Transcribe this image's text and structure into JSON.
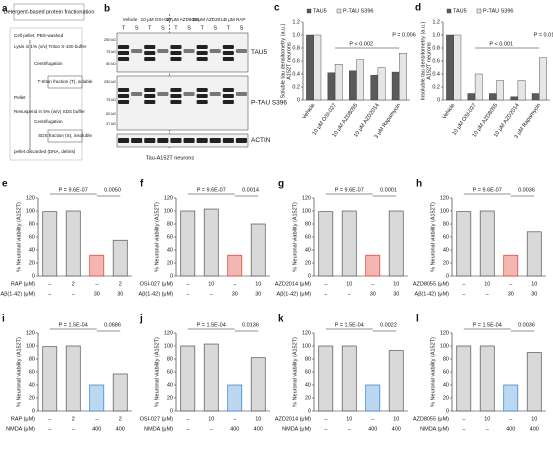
{
  "diagram": {
    "label": "a",
    "title": "Detergent-based protein fractionation",
    "steps": [
      "Cell pellet, PBS-washed",
      "Lysis in 1% (v/v) Triton X-100 buffer",
      "Centrifugation",
      "T-triton fraction (T), soluble",
      "Pellet",
      "Resuspend in 5% (w/v) SDS buffer",
      "Centrifugation",
      "SDS fraction (S), insoluble",
      "pellet discarded (DNA, debris)"
    ]
  },
  "blot": {
    "label": "b",
    "lanes": [
      "Vehicle",
      "10 μM OSI-027",
      "10 μM AZD8055",
      "10 μM AZD2014",
      "3 μM RAP"
    ],
    "fractions": [
      "T",
      "S"
    ],
    "markers": [
      "250 kD",
      "75 kD",
      "50 kD",
      "250 kD",
      "75 kD",
      "50 kD",
      "37 kD"
    ],
    "proteins": [
      "TAU5",
      "P-TAU S396",
      "ACTIN"
    ],
    "footer": "Tau-A152T neurons"
  },
  "chart_data": [
    {
      "type": "bar",
      "label": "c",
      "ylabel": "Soluble tau densitometry (a.u.)",
      "ylabel2": "A152T neurons",
      "categories": [
        "Vehicle",
        "10 μM OSI-027",
        "10 μM AZD8055",
        "10 μM AZD2014",
        "3 μM Rapamycin"
      ],
      "series": [
        {
          "name": "TAU5",
          "color": "#5a5a5a",
          "values": [
            1.0,
            0.42,
            0.45,
            0.38,
            0.43
          ]
        },
        {
          "name": "P-TAU S396",
          "color": "#e6e6e6",
          "values": [
            1.0,
            0.55,
            0.62,
            0.5,
            0.72
          ]
        }
      ],
      "ylim": [
        0,
        1.2
      ],
      "yticks": [
        0,
        0.2,
        0.4,
        0.6,
        0.8,
        {
          "value": 1,
          "label": "1.0"
        },
        1.2
      ],
      "annotations": [
        "P < 0.002",
        "P = 0.006"
      ]
    },
    {
      "type": "bar",
      "label": "d",
      "ylabel": "Insoluble tau densitometry (a.u.)",
      "ylabel2": "A152T neurons",
      "categories": [
        "Vehicle",
        "10 μM OSI-027",
        "10 μM AZD8055",
        "10 μM AZD2014",
        "3 μM Rapamycin"
      ],
      "series": [
        {
          "name": "TAU5",
          "color": "#5a5a5a",
          "values": [
            1.0,
            0.1,
            0.1,
            0.05,
            0.1
          ]
        },
        {
          "name": "P-TAU S396",
          "color": "#e6e6e6",
          "values": [
            1.0,
            0.4,
            0.3,
            0.3,
            0.65
          ]
        }
      ],
      "ylim": [
        0,
        1.2
      ],
      "yticks": [
        0,
        0.2,
        0.4,
        0.6,
        0.8,
        {
          "value": 1,
          "label": "1.0"
        },
        1.2
      ],
      "annotations": [
        "P < 0.001",
        "P = 0.01"
      ]
    },
    {
      "type": "bar",
      "label": "e",
      "ylabel": "% Neuronal viability (A152T)",
      "values": [
        99,
        100,
        32,
        55
      ],
      "colors": [
        "#d9d9d9",
        "#d9d9d9",
        "#f4b6b0",
        "#d9d9d9"
      ],
      "edge_colors": [
        "#555555",
        "#555555",
        "#e03c31",
        "#555555"
      ],
      "conditions": [
        {
          "name": "RAP (μM)",
          "values": [
            "–",
            "2",
            "–",
            "2"
          ]
        },
        {
          "name": "Aβ(1-42) (μM)",
          "values": [
            "–",
            "–",
            "30",
            "30"
          ]
        }
      ],
      "ylim": [
        0,
        120
      ],
      "yticks": [
        0,
        20,
        40,
        60,
        80,
        100,
        120
      ],
      "annotations": [
        "P = 9.6E-07",
        "0.0050"
      ]
    },
    {
      "type": "bar",
      "label": "f",
      "ylabel": "% Neuronal viability (A152T)",
      "values": [
        100,
        103,
        32,
        80
      ],
      "colors": [
        "#d9d9d9",
        "#d9d9d9",
        "#f4b6b0",
        "#d9d9d9"
      ],
      "edge_colors": [
        "#555555",
        "#555555",
        "#e03c31",
        "#555555"
      ],
      "conditions": [
        {
          "name": "OSI-027 (μM)",
          "values": [
            "–",
            "10",
            "–",
            "10"
          ]
        },
        {
          "name": "Aβ(1-42) (μM)",
          "values": [
            "–",
            "–",
            "30",
            "30"
          ]
        }
      ],
      "ylim": [
        0,
        120
      ],
      "yticks": [
        0,
        20,
        40,
        60,
        80,
        100,
        120
      ],
      "annotations": [
        "P = 9.6E-07",
        "0.0014"
      ]
    },
    {
      "type": "bar",
      "label": "g",
      "ylabel": "% Neuronal viability (A152T)",
      "values": [
        99,
        100,
        32,
        100
      ],
      "colors": [
        "#d9d9d9",
        "#d9d9d9",
        "#f4b6b0",
        "#d9d9d9"
      ],
      "edge_colors": [
        "#555555",
        "#555555",
        "#e03c31",
        "#555555"
      ],
      "conditions": [
        {
          "name": "AZD2014 (μM)",
          "values": [
            "–",
            "10",
            "–",
            "10"
          ]
        },
        {
          "name": "Aβ(1-42) (μM)",
          "values": [
            "–",
            "–",
            "30",
            "30"
          ]
        }
      ],
      "ylim": [
        0,
        120
      ],
      "yticks": [
        0,
        20,
        40,
        60,
        80,
        100,
        120
      ],
      "annotations": [
        "P = 9.6E-07",
        "0.0001"
      ]
    },
    {
      "type": "bar",
      "label": "h",
      "ylabel": "% Neuronal viability (A152T)",
      "values": [
        99,
        100,
        32,
        68
      ],
      "colors": [
        "#d9d9d9",
        "#d9d9d9",
        "#f4b6b0",
        "#d9d9d9"
      ],
      "edge_colors": [
        "#555555",
        "#555555",
        "#e03c31",
        "#555555"
      ],
      "conditions": [
        {
          "name": "AZD8055 (μM)",
          "values": [
            "–",
            "10",
            "–",
            "10"
          ]
        },
        {
          "name": "Aβ(1-42) (μM)",
          "values": [
            "–",
            "–",
            "30",
            "30"
          ]
        }
      ],
      "ylim": [
        0,
        120
      ],
      "yticks": [
        0,
        20,
        40,
        60,
        80,
        100,
        120
      ],
      "annotations": [
        "P = 9.6E-07",
        "0.0036"
      ]
    },
    {
      "type": "bar",
      "label": "i",
      "ylabel": "% Neuronal viability (A152T)",
      "values": [
        99,
        100,
        40,
        57
      ],
      "colors": [
        "#d9d9d9",
        "#d9d9d9",
        "#bcd7f0",
        "#d9d9d9"
      ],
      "edge_colors": [
        "#555555",
        "#555555",
        "#2a7fd0",
        "#555555"
      ],
      "conditions": [
        {
          "name": "RAP (μM)",
          "values": [
            "–",
            "2",
            "–",
            "2"
          ]
        },
        {
          "name": "NMDA (μM)",
          "values": [
            "–",
            "–",
            "400",
            "400"
          ]
        }
      ],
      "ylim": [
        0,
        120
      ],
      "yticks": [
        0,
        20,
        40,
        60,
        80,
        100,
        120
      ],
      "annotations": [
        "P = 1.5E-04",
        "0.0686"
      ]
    },
    {
      "type": "bar",
      "label": "j",
      "ylabel": "% Neuronal viability (A152T)",
      "values": [
        100,
        103,
        40,
        82
      ],
      "colors": [
        "#d9d9d9",
        "#d9d9d9",
        "#bcd7f0",
        "#d9d9d9"
      ],
      "edge_colors": [
        "#555555",
        "#555555",
        "#2a7fd0",
        "#555555"
      ],
      "conditions": [
        {
          "name": "OSI-027 (μM)",
          "values": [
            "–",
            "10",
            "–",
            "10"
          ]
        },
        {
          "name": "NMDA (μM)",
          "values": [
            "–",
            "–",
            "400",
            "400"
          ]
        }
      ],
      "ylim": [
        0,
        120
      ],
      "yticks": [
        0,
        20,
        40,
        60,
        80,
        100,
        120
      ],
      "annotations": [
        "P = 1.5E-04",
        "0.0136"
      ]
    },
    {
      "type": "bar",
      "label": "k",
      "ylabel": "% Neuronal viability (A152T)",
      "values": [
        100,
        100,
        40,
        93
      ],
      "colors": [
        "#d9d9d9",
        "#d9d9d9",
        "#bcd7f0",
        "#d9d9d9"
      ],
      "edge_colors": [
        "#555555",
        "#555555",
        "#2a7fd0",
        "#555555"
      ],
      "conditions": [
        {
          "name": "AZD2014 (μM)",
          "values": [
            "–",
            "10",
            "–",
            "10"
          ]
        },
        {
          "name": "NMDA (μM)",
          "values": [
            "–",
            "–",
            "400",
            "400"
          ]
        }
      ],
      "ylim": [
        0,
        120
      ],
      "yticks": [
        0,
        20,
        40,
        60,
        80,
        100,
        120
      ],
      "annotations": [
        "P = 1.5E-04",
        "0.0022"
      ]
    },
    {
      "type": "bar",
      "label": "l",
      "ylabel": "% Neuronal viability (A152T)",
      "values": [
        100,
        100,
        40,
        90
      ],
      "colors": [
        "#d9d9d9",
        "#d9d9d9",
        "#bcd7f0",
        "#d9d9d9"
      ],
      "edge_colors": [
        "#555555",
        "#555555",
        "#2a7fd0",
        "#555555"
      ],
      "conditions": [
        {
          "name": "AZD8055 (μM)",
          "values": [
            "–",
            "10",
            "–",
            "10"
          ]
        },
        {
          "name": "NMDA (μM)",
          "values": [
            "–",
            "–",
            "400",
            "400"
          ]
        }
      ],
      "ylim": [
        0,
        120
      ],
      "yticks": [
        0,
        20,
        40,
        60,
        80,
        100,
        120
      ],
      "annotations": [
        "P = 1.5E-04",
        "0.0036"
      ]
    }
  ]
}
